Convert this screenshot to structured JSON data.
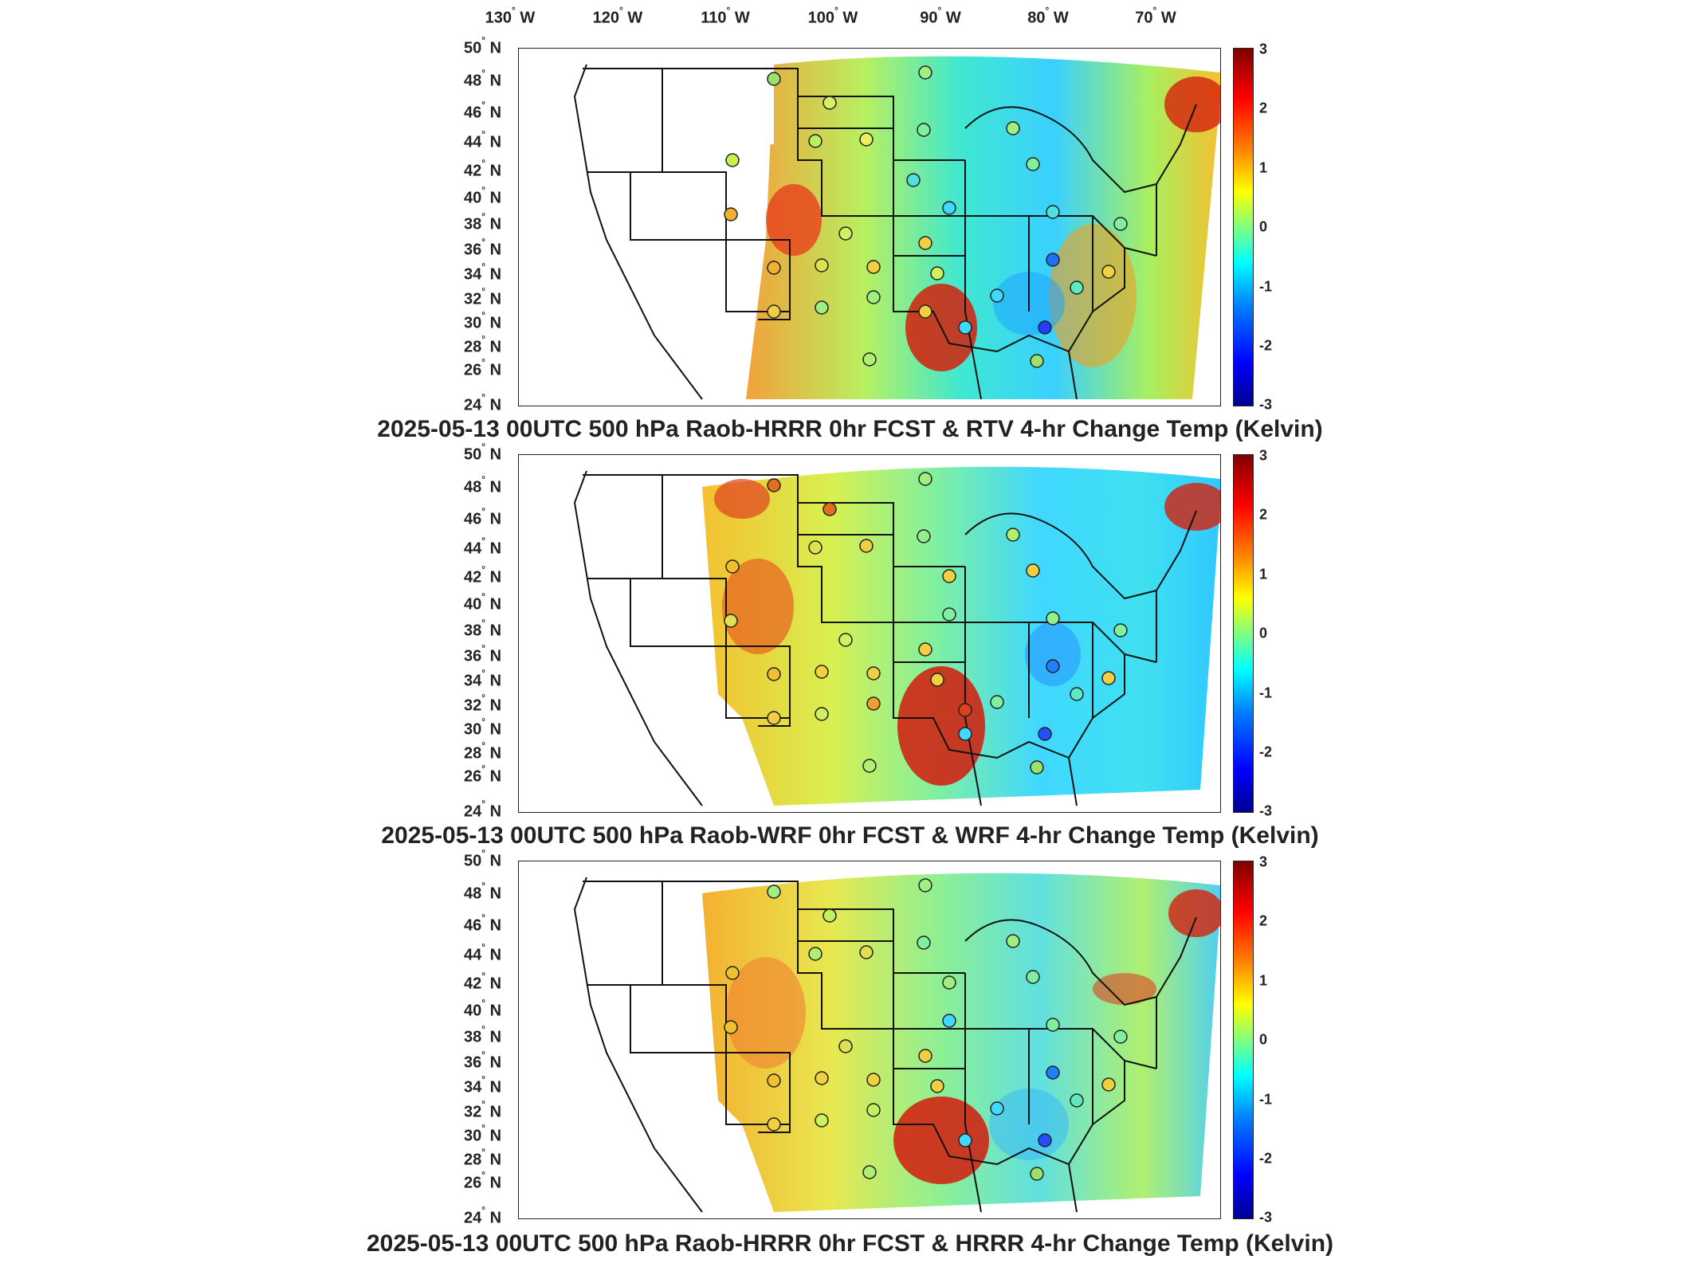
{
  "lon_axis": [
    "130",
    "120",
    "110",
    "100",
    "90",
    "80",
    "70"
  ],
  "lon_hemisphere": "W",
  "lat_axis": [
    "50",
    "48",
    "46",
    "44",
    "42",
    "40",
    "38",
    "36",
    "34",
    "32",
    "30",
    "28",
    "26",
    "24"
  ],
  "lat_hemisphere": "N",
  "degree_symbol": "°",
  "colorbar": {
    "ticks": [
      "3",
      "2",
      "1",
      "0",
      "-1",
      "-2",
      "-3"
    ],
    "range": [
      -3,
      3
    ],
    "colormap": "jet",
    "colors": [
      "#00008f",
      "#0000ff",
      "#0080ff",
      "#00ffff",
      "#80ff80",
      "#ffff00",
      "#ff8000",
      "#ff0000",
      "#800000"
    ]
  },
  "panels": [
    {
      "title": "2025-05-13 00UTC 500 hPa Raob-HRRR 0hr FCST & RTV 4-hr Change Temp (Kelvin)"
    },
    {
      "title": "2025-05-13 00UTC 500 hPa Raob-WRF 0hr FCST & WRF 4-hr Change Temp (Kelvin)"
    },
    {
      "title": "2025-05-13 00UTC 500 hPa Raob-HRRR 0hr FCST & HRRR 4-hr Change Temp (Kelvin)"
    }
  ]
}
